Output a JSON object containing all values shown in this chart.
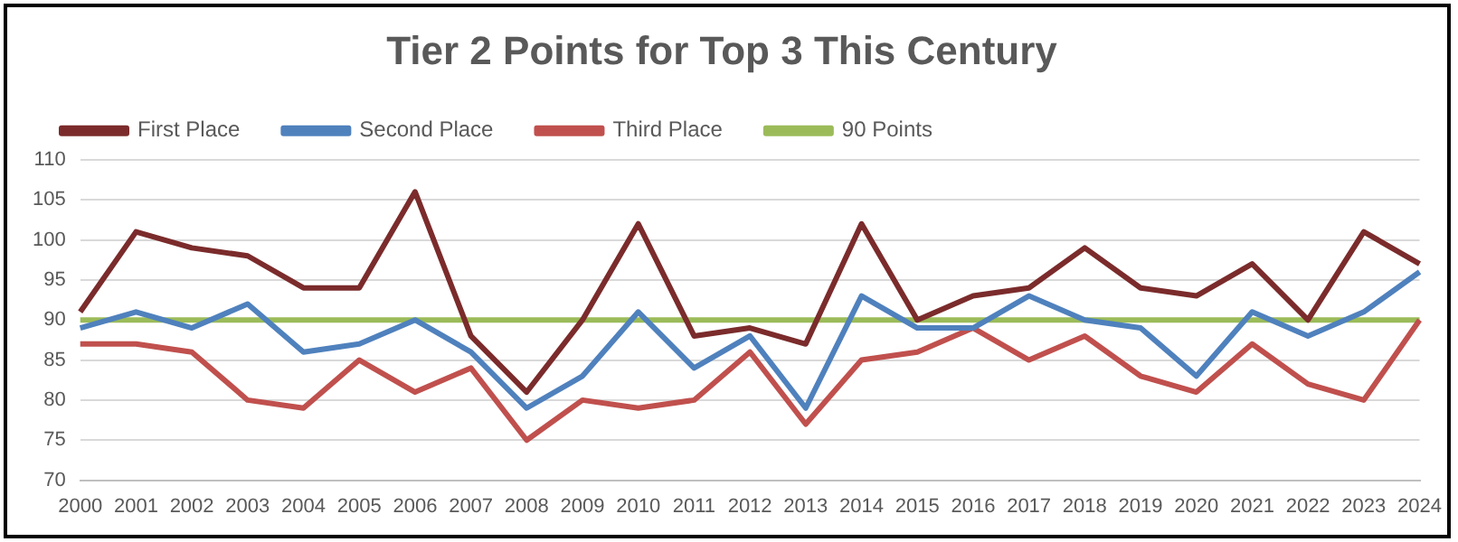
{
  "chart_data": {
    "type": "line",
    "title": "Tier 2 Points for Top 3 This Century",
    "categories": [
      "2000",
      "2001",
      "2002",
      "2003",
      "2004",
      "2005",
      "2006",
      "2007",
      "2008",
      "2009",
      "2010",
      "2011",
      "2012",
      "2013",
      "2014",
      "2015",
      "2016",
      "2017",
      "2018",
      "2019",
      "2020",
      "2021",
      "2022",
      "2023",
      "2024"
    ],
    "series": [
      {
        "name": "First Place",
        "color": "#7b2b2b",
        "values": [
          91,
          101,
          99,
          98,
          94,
          94,
          106,
          88,
          81,
          90,
          102,
          88,
          89,
          87,
          102,
          90,
          93,
          94,
          99,
          94,
          93,
          97,
          90,
          101,
          97
        ]
      },
      {
        "name": "Second Place",
        "color": "#4f81bd",
        "values": [
          89,
          91,
          89,
          92,
          86,
          87,
          90,
          86,
          79,
          83,
          91,
          84,
          88,
          79,
          93,
          89,
          89,
          93,
          90,
          89,
          83,
          91,
          88,
          91,
          96
        ]
      },
      {
        "name": "Third Place",
        "color": "#c0504d",
        "values": [
          87,
          87,
          86,
          80,
          79,
          85,
          81,
          84,
          75,
          80,
          79,
          80,
          86,
          77,
          85,
          86,
          89,
          85,
          88,
          83,
          81,
          87,
          82,
          80,
          90
        ]
      },
      {
        "name": "90 Points",
        "color": "#9bbb59",
        "values": [
          90,
          90,
          90,
          90,
          90,
          90,
          90,
          90,
          90,
          90,
          90,
          90,
          90,
          90,
          90,
          90,
          90,
          90,
          90,
          90,
          90,
          90,
          90,
          90,
          90
        ]
      }
    ],
    "ylim": [
      70,
      110
    ],
    "yticks": [
      70,
      75,
      80,
      85,
      90,
      95,
      100,
      105,
      110
    ],
    "grid": "y",
    "legend": "top",
    "marker": "none",
    "line_style": "solid"
  }
}
